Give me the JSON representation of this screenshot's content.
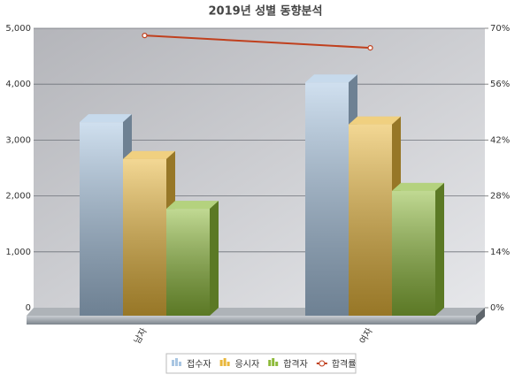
{
  "chart_data": {
    "type": "bar",
    "title": "2019년 성별 동향분석",
    "categories": [
      "남자",
      "여자"
    ],
    "series": [
      {
        "name": "접수자",
        "color": "#a9c6e2",
        "values": [
          3320,
          4030
        ]
      },
      {
        "name": "응시자",
        "color": "#e9b73c",
        "values": [
          2660,
          3280
        ]
      },
      {
        "name": "합격자",
        "color": "#8dba3a",
        "values": [
          1770,
          2090
        ]
      },
      {
        "name": "합격률",
        "type": "line",
        "axis": "y2",
        "color": "#c0401e",
        "values": [
          68.2,
          65.1
        ]
      }
    ],
    "ylim": [
      0,
      5000
    ],
    "yticks": [
      0,
      {
        "value": 1000,
        "label": "1,000"
      },
      {
        "value": 2000,
        "label": "2,000"
      },
      {
        "value": 3000,
        "label": "3,000"
      },
      {
        "value": 4000,
        "label": "4,000"
      },
      {
        "value": 5000,
        "label": "5,000"
      }
    ],
    "y2lim": [
      0,
      70
    ],
    "y2ticks": [
      {
        "value": 0,
        "label": "0%"
      },
      {
        "value": 14,
        "label": "14%"
      },
      {
        "value": 28,
        "label": "28%"
      },
      {
        "value": 42,
        "label": "42%"
      },
      {
        "value": 56,
        "label": "56%"
      },
      {
        "value": 70,
        "label": "70%"
      }
    ],
    "grid": true,
    "legend": "bottom"
  }
}
